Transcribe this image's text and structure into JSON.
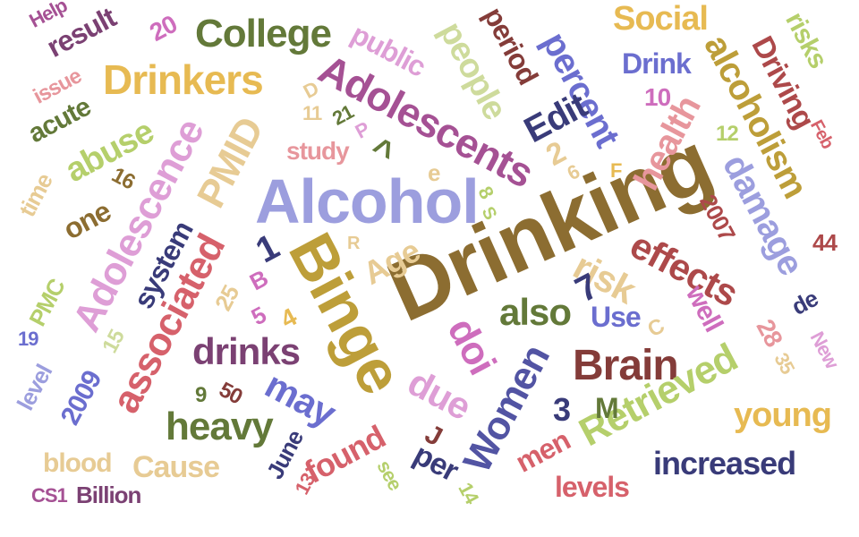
{
  "words": [
    {
      "text": "Drinking",
      "color": "#8c6d31"
    },
    {
      "text": "Alcohol",
      "color": "#9c9ede"
    },
    {
      "text": "Binge",
      "color": "#bd9e39"
    },
    {
      "text": "Adolescents",
      "color": "#a55194"
    },
    {
      "text": "Drinkers",
      "color": "#e7ba52"
    },
    {
      "text": "College",
      "color": "#637939"
    },
    {
      "text": "Adolescence",
      "color": "#de9ed6"
    },
    {
      "text": "associated",
      "color": "#d6616b"
    },
    {
      "text": "PMID",
      "color": "#e7cb94"
    },
    {
      "text": "Brain",
      "color": "#843c39"
    },
    {
      "text": "Retrieved",
      "color": "#b5cf6b"
    },
    {
      "text": "Women",
      "color": "#5254a3"
    },
    {
      "text": "alcoholism",
      "color": "#bd9e39"
    },
    {
      "text": "health",
      "color": "#e7969c"
    },
    {
      "text": "effects",
      "color": "#ad494a"
    },
    {
      "text": "damage",
      "color": "#9c9ede"
    },
    {
      "text": "percent",
      "color": "#6b6ecf"
    },
    {
      "text": "people",
      "color": "#cedb9c"
    },
    {
      "text": "Driving",
      "color": "#ad494a"
    },
    {
      "text": "abuse",
      "color": "#b5cf6b"
    },
    {
      "text": "drinks",
      "color": "#7b4173"
    },
    {
      "text": "heavy",
      "color": "#637939"
    },
    {
      "text": "may",
      "color": "#6b6ecf"
    },
    {
      "text": "doi",
      "color": "#ce6dbd"
    },
    {
      "text": "due",
      "color": "#de9ed6"
    },
    {
      "text": "also",
      "color": "#637939"
    },
    {
      "text": "risk",
      "color": "#e7cb94"
    },
    {
      "text": "young",
      "color": "#e7ba52"
    },
    {
      "text": "increased",
      "color": "#393b79"
    },
    {
      "text": "Cause",
      "color": "#e7cb94"
    },
    {
      "text": "found",
      "color": "#d6616b"
    },
    {
      "text": "Social",
      "color": "#e7ba52"
    },
    {
      "text": "Drink",
      "color": "#6b6ecf"
    },
    {
      "text": "result",
      "color": "#7b4173"
    },
    {
      "text": "Edit",
      "color": "#393b79"
    },
    {
      "text": "study",
      "color": "#e7969c"
    },
    {
      "text": "public",
      "color": "#de9ed6"
    },
    {
      "text": "period",
      "color": "#843c39"
    },
    {
      "text": "system",
      "color": "#393b79"
    },
    {
      "text": "Age",
      "color": "#e7cb94"
    },
    {
      "text": "acute",
      "color": "#637939"
    },
    {
      "text": "time",
      "color": "#e7cb94"
    },
    {
      "text": "one",
      "color": "#8c6d31"
    },
    {
      "text": "Use",
      "color": "#6b6ecf"
    },
    {
      "text": "well",
      "color": "#ce6dbd"
    },
    {
      "text": "men",
      "color": "#d6616b"
    },
    {
      "text": "levels",
      "color": "#d6616b"
    },
    {
      "text": "blood",
      "color": "#e7cb94"
    },
    {
      "text": "level",
      "color": "#9c9ede"
    },
    {
      "text": "2009",
      "color": "#6b6ecf"
    },
    {
      "text": "risks",
      "color": "#b5cf6b"
    },
    {
      "text": "2007",
      "color": "#ad494a"
    },
    {
      "text": "June",
      "color": "#393b79"
    },
    {
      "text": "per",
      "color": "#393b79"
    },
    {
      "text": "see",
      "color": "#b5cf6b"
    },
    {
      "text": "Billion",
      "color": "#7b4173"
    },
    {
      "text": "CS1",
      "color": "#a55194"
    },
    {
      "text": "PMC",
      "color": "#b5cf6b"
    },
    {
      "text": "Help",
      "color": "#a55194"
    },
    {
      "text": "issue",
      "color": "#e7969c"
    },
    {
      "text": "New",
      "color": "#de9ed6"
    },
    {
      "text": "Feb",
      "color": "#d6616b"
    },
    {
      "text": "de",
      "color": "#393b79"
    },
    {
      "text": "20",
      "color": "#ce6dbd"
    },
    {
      "text": "10",
      "color": "#ce6dbd"
    },
    {
      "text": "12",
      "color": "#b5cf6b"
    },
    {
      "text": "44",
      "color": "#ad494a"
    },
    {
      "text": "16",
      "color": "#8c6d31"
    },
    {
      "text": "25",
      "color": "#e7cb94"
    },
    {
      "text": "15",
      "color": "#cedb9c"
    },
    {
      "text": "19",
      "color": "#6b6ecf"
    },
    {
      "text": "28",
      "color": "#e7969c"
    },
    {
      "text": "35",
      "color": "#e7cb94"
    },
    {
      "text": "50",
      "color": "#843c39"
    },
    {
      "text": "9",
      "color": "#637939"
    },
    {
      "text": "13",
      "color": "#d6616b"
    },
    {
      "text": "14",
      "color": "#b5cf6b"
    },
    {
      "text": "11",
      "color": "#e7cb94"
    },
    {
      "text": "21",
      "color": "#637939"
    },
    {
      "text": "2",
      "color": "#e7cb94"
    },
    {
      "text": "6",
      "color": "#e7cb94"
    },
    {
      "text": "8",
      "color": "#b5cf6b"
    },
    {
      "text": "S",
      "color": "#b5cf6b"
    },
    {
      "text": "1",
      "color": "#393b79"
    },
    {
      "text": "7",
      "color": "#393b79"
    },
    {
      "text": "5",
      "color": "#ce6dbd"
    },
    {
      "text": "B",
      "color": "#ce6dbd"
    },
    {
      "text": "4",
      "color": "#e7ba52"
    },
    {
      "text": "3",
      "color": "#393b79"
    },
    {
      "text": "M",
      "color": "#637939"
    },
    {
      "text": "J",
      "color": "#843c39"
    },
    {
      "text": "C",
      "color": "#e7cb94"
    },
    {
      "text": "F",
      "color": "#e7ba52"
    },
    {
      "text": "R",
      "color": "#e7cb94"
    },
    {
      "text": "e",
      "color": "#e7cb94"
    },
    {
      "text": "D",
      "color": "#e7cb94"
    },
    {
      "text": "P",
      "color": "#de9ed6"
    },
    {
      "text": "^",
      "color": "#637939"
    }
  ]
}
